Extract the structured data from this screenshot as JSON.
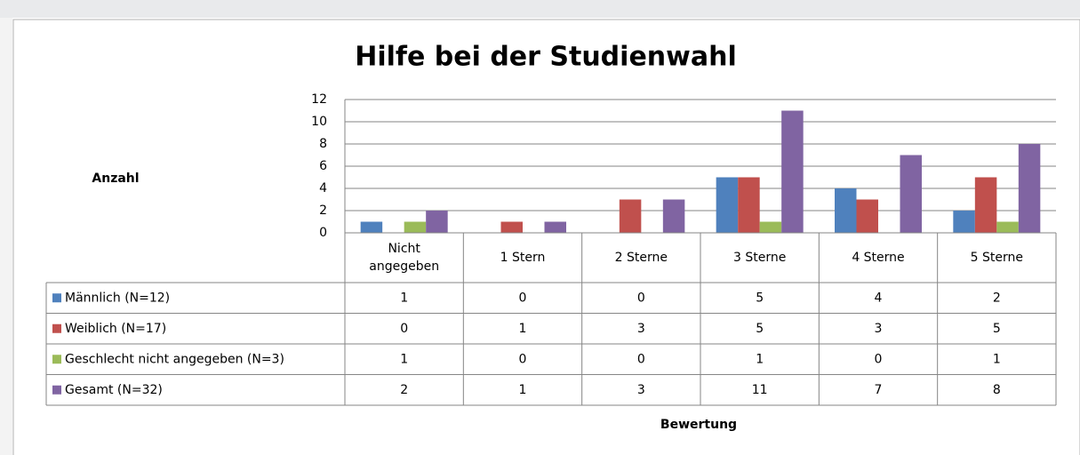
{
  "chart_data": {
    "type": "bar",
    "title": "Hilfe bei der Studienwahl",
    "y_label": "Anzahl",
    "x_label": "Bewertung",
    "categories": [
      "Nicht angegeben",
      "1 Stern",
      "2 Sterne",
      "3 Sterne",
      "4 Sterne",
      "5 Sterne"
    ],
    "series": [
      {
        "name": "Männlich (N=12)",
        "color": "#4f81bd",
        "values": [
          1,
          0,
          0,
          5,
          4,
          2
        ]
      },
      {
        "name": "Weiblich (N=17)",
        "color": "#c0504d",
        "values": [
          0,
          1,
          3,
          5,
          3,
          5
        ]
      },
      {
        "name": "Geschlecht nicht angegeben (N=3)",
        "color": "#9bbb59",
        "values": [
          1,
          0,
          0,
          1,
          0,
          1
        ]
      },
      {
        "name": "Gesamt (N=32)",
        "color": "#8064a2",
        "values": [
          2,
          1,
          3,
          11,
          7,
          8
        ]
      }
    ],
    "ylim": [
      0,
      12
    ],
    "yticks": [
      0,
      2,
      4,
      6,
      8,
      10,
      12
    ],
    "grid": true,
    "data_table": true
  }
}
